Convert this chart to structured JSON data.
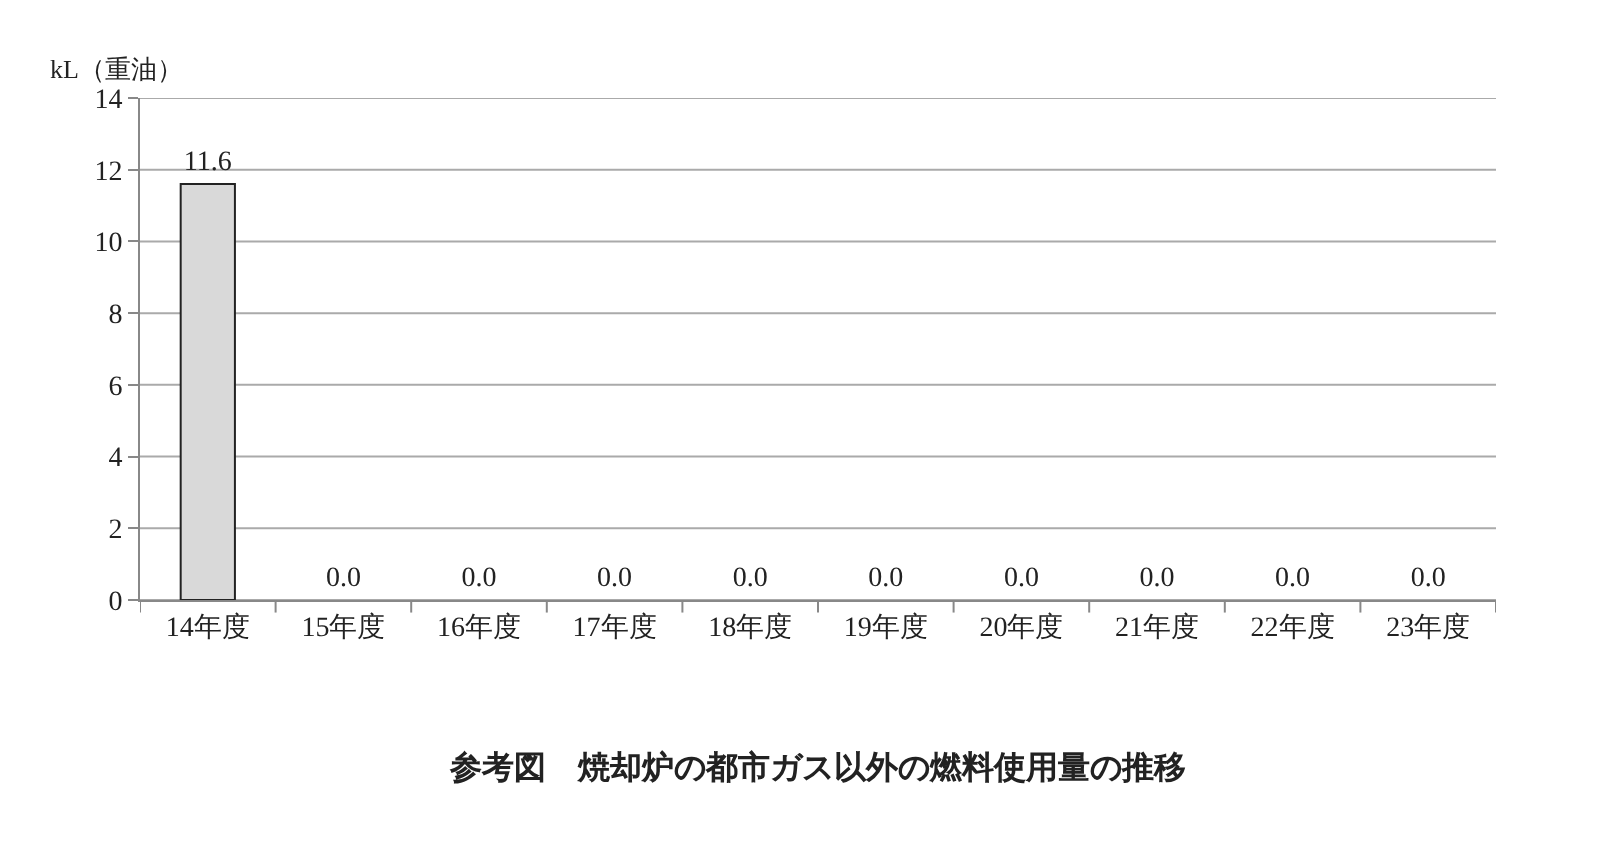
{
  "chart_data": {
    "type": "bar",
    "title": "参考図　焼却炉の都市ガス以外の燃料使用量の推移",
    "ylabel": "kL（重油）",
    "categories": [
      "14年度",
      "15年度",
      "16年度",
      "17年度",
      "18年度",
      "19年度",
      "20年度",
      "21年度",
      "22年度",
      "23年度"
    ],
    "values": [
      11.6,
      0,
      0,
      0,
      0,
      0,
      0,
      0,
      0,
      0
    ],
    "value_labels": [
      "11.6",
      "0.0",
      "0.0",
      "0.0",
      "0.0",
      "0.0",
      "0.0",
      "0.0",
      "0.0",
      "0.0"
    ],
    "color": "#d9d9d9",
    "ylim": [
      0,
      14
    ],
    "yticks": [
      0,
      2,
      4,
      6,
      8,
      10,
      12,
      14
    ],
    "grid": "y"
  }
}
